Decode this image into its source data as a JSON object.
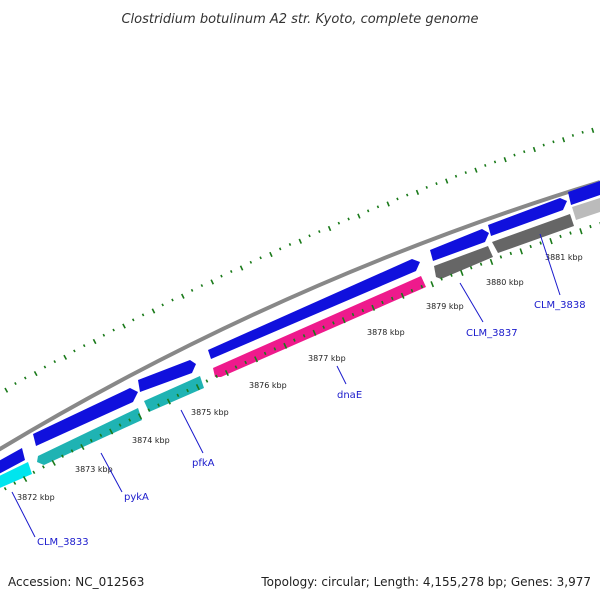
{
  "title": "Clostridium botulinum A2 str. Kyoto, complete genome",
  "footer": {
    "accession": "Accession: NC_012563",
    "summary": "Topology: circular; Length: 4,155,278 bp; Genes: 3,977"
  },
  "scale_labels": [
    "3872 kbp",
    "3873 kbp",
    "3874 kbp",
    "3875 kbp",
    "3876 kbp",
    "3877 kbp",
    "3878 kbp",
    "3879 kbp",
    "3880 kbp",
    "3881 kbp"
  ],
  "gene_labels": [
    "CLM_3833",
    "pykA",
    "pfkA",
    "dnaE",
    "CLM_3837",
    "CLM_3838"
  ],
  "colors": {
    "forward_cds": "#1010dd",
    "pykA_pfkA": "#1fb3b3",
    "CLM_3833": "#00e5ee",
    "dnaE": "#ee1a8c",
    "CLM_3837": "#666666",
    "CLM_3838": "#bbbbbb",
    "backbone": "#888888",
    "ticks": "#1a7a1a",
    "labels": "#1a1acc"
  }
}
